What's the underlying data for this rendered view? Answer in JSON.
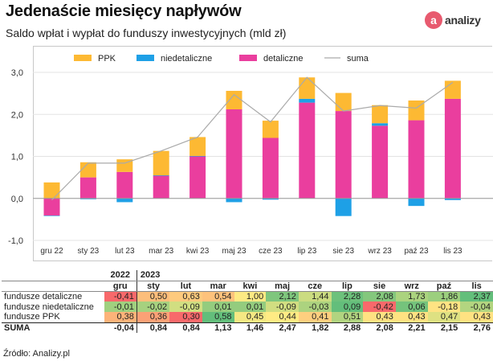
{
  "header": {
    "title": "Jedenaście miesięcy napływów",
    "subtitle": "Saldo wpłat i wypłat do funduszy inwestycyjnych (mld zł)",
    "logo_mark": "a",
    "logo_text": "analizy"
  },
  "colors": {
    "ppk": "#fdb933",
    "niedetaliczne": "#1ea0e6",
    "detaliczne": "#ea3e9e",
    "suma": "#aaaaaa",
    "heat_low": "#f8696b",
    "heat_mid": "#ffeb84",
    "heat_high": "#63be7b"
  },
  "chart_data": {
    "type": "bar",
    "stacked": true,
    "categories": [
      "gru 22",
      "sty 23",
      "lut 23",
      "mar 23",
      "kwi 23",
      "maj 23",
      "cze 23",
      "lip 23",
      "sie 23",
      "wrz 23",
      "paź 23",
      "lis 23"
    ],
    "series": [
      {
        "name": "PPK",
        "key": "ppk",
        "values": [
          0.38,
          0.36,
          0.3,
          0.58,
          0.45,
          0.44,
          0.41,
          0.51,
          0.43,
          0.43,
          0.47,
          0.43
        ]
      },
      {
        "name": "niedetaliczne",
        "key": "niedetaliczne",
        "values": [
          -0.01,
          -0.02,
          -0.09,
          0.01,
          0.01,
          -0.09,
          -0.03,
          0.09,
          -0.42,
          0.06,
          -0.18,
          -0.04
        ]
      },
      {
        "name": "detaliczne",
        "key": "detaliczne",
        "values": [
          -0.41,
          0.5,
          0.63,
          0.54,
          1.0,
          2.12,
          1.44,
          2.28,
          2.08,
          1.73,
          1.86,
          2.37
        ]
      },
      {
        "name": "suma",
        "key": "suma",
        "type": "line",
        "values": [
          -0.04,
          0.84,
          0.84,
          1.13,
          1.46,
          2.47,
          1.82,
          2.88,
          2.08,
          2.21,
          2.15,
          2.76
        ]
      }
    ],
    "ylim": [
      -1.0,
      3.0
    ],
    "yticks": [
      "-1,0",
      "0,0",
      "1,0",
      "2,0",
      "3,0"
    ],
    "ytick_values": [
      -1,
      0,
      1,
      2,
      3
    ],
    "grid": true,
    "legend_position": "top"
  },
  "table": {
    "years": [
      "2022",
      "2023"
    ],
    "months": [
      "gru",
      "sty",
      "lut",
      "mar",
      "kwi",
      "maj",
      "cze",
      "lip",
      "sie",
      "wrz",
      "paź",
      "lis"
    ],
    "rows": [
      {
        "label": "fundusze detaliczne",
        "values": [
          "-0,41",
          "0,50",
          "0,63",
          "0,54",
          "1,00",
          "2,12",
          "1,44",
          "2,28",
          "2,08",
          "1,73",
          "1,86",
          "2,37"
        ]
      },
      {
        "label": "fundusze niedetaliczne",
        "values": [
          "-0,01",
          "-0,02",
          "-0,09",
          "0,01",
          "0,01",
          "-0,09",
          "-0,03",
          "0,09",
          "-0,42",
          "0,06",
          "-0,18",
          "-0,04"
        ]
      },
      {
        "label": "fundusze PPK",
        "values": [
          "0,38",
          "0,36",
          "0,30",
          "0,58",
          "0,45",
          "0,44",
          "0,41",
          "0,51",
          "0,43",
          "0,43",
          "0,47",
          "0,43"
        ]
      }
    ],
    "sum_row": {
      "label": "SUMA",
      "values": [
        "-0,04",
        "0,84",
        "0,84",
        "1,13",
        "1,46",
        "2,47",
        "1,82",
        "2,88",
        "2,08",
        "2,21",
        "2,15",
        "2,76"
      ]
    }
  },
  "source": "Źródło: Analizy.pl"
}
